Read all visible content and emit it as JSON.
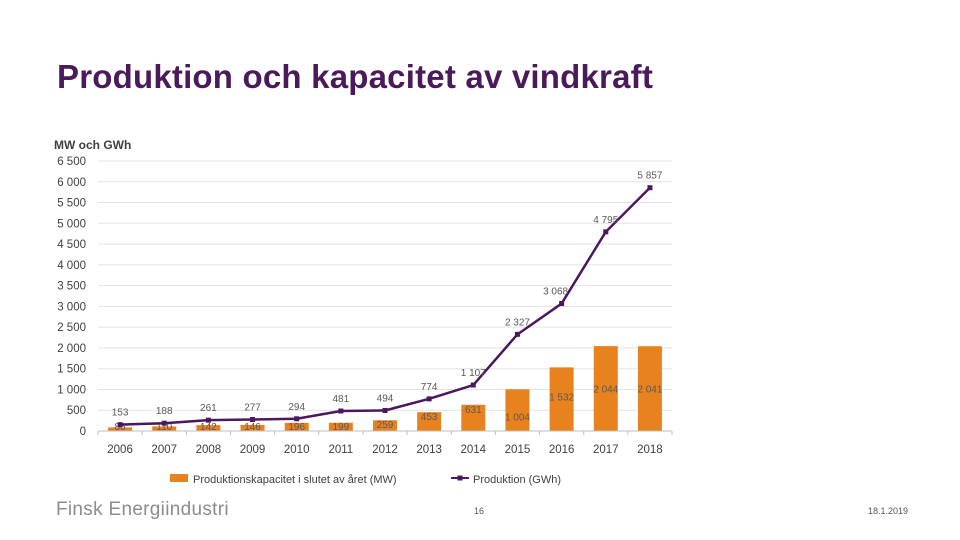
{
  "slide": {
    "title": "Produktion och kapacitet av vindkraft",
    "footer_logo": "Finsk Energiindustri",
    "page_number": "16",
    "date": "18.1.2019"
  },
  "chart_data": {
    "type": "bar",
    "title": "",
    "ylabel": "MW och GWh",
    "xlabel": "",
    "ylim": [
      0,
      6500
    ],
    "yticks": [
      0,
      500,
      1000,
      1500,
      2000,
      2500,
      3000,
      3500,
      4000,
      4500,
      5000,
      5500,
      6000,
      6500
    ],
    "ytick_labels": [
      "0",
      "500",
      "1 000",
      "1 500",
      "2 000",
      "2 500",
      "3 000",
      "3 500",
      "4 000",
      "4 500",
      "5 000",
      "5 500",
      "6 000",
      "6 500"
    ],
    "categories": [
      "2006",
      "2007",
      "2008",
      "2009",
      "2010",
      "2011",
      "2012",
      "2013",
      "2014",
      "2015",
      "2016",
      "2017",
      "2018"
    ],
    "series": [
      {
        "name": "Produktionskapacitet i slutet av året (MW)",
        "type": "bar",
        "color": "#e8821e",
        "values": [
          86,
          110,
          142,
          146,
          196,
          199,
          259,
          453,
          631,
          1004,
          1532,
          2044,
          2041
        ],
        "labels": [
          "86",
          "110",
          "142",
          "146",
          "196",
          "199",
          "259",
          "453",
          "631",
          "1 004",
          "1 532",
          "2 044",
          "2 041"
        ]
      },
      {
        "name": "Produktion (GWh)",
        "type": "line",
        "color": "#4b1860",
        "values": [
          153,
          188,
          261,
          277,
          294,
          481,
          494,
          774,
          1107,
          2327,
          3068,
          4795,
          5857
        ],
        "labels": [
          "153",
          "188",
          "261",
          "277",
          "294",
          "481",
          "494",
          "774",
          "1 107",
          "2 327",
          "3 068",
          "4 795",
          "5 857"
        ]
      }
    ],
    "legend_position": "bottom",
    "grid": true
  }
}
